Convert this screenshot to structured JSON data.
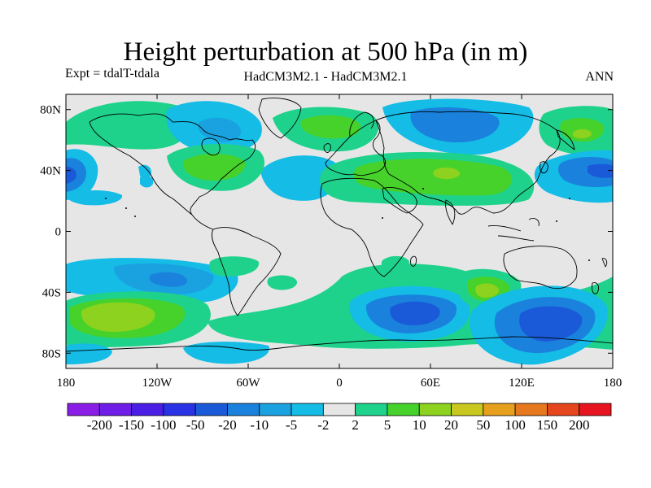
{
  "title": "Height perturbation at 500 hPa (in m)",
  "experiment": "Expt = tdalT-tdala",
  "models": "HadCM3M2.1 - HadCM3M2.1",
  "season": "ANN",
  "axes": {
    "x_ticks": [
      "180",
      "120W",
      "60W",
      "0",
      "60E",
      "120E",
      "180"
    ],
    "x_values": [
      -180,
      -120,
      -60,
      0,
      60,
      120,
      180
    ],
    "y_ticks": [
      "80N",
      "40N",
      "0",
      "40S",
      "80S"
    ],
    "y_values": [
      80,
      40,
      0,
      -40,
      -80
    ],
    "lon_range": [
      -180,
      180
    ],
    "lat_range": [
      -90,
      90
    ]
  },
  "colorbar": {
    "labels": [
      "-200",
      "-150",
      "-100",
      "-50",
      "-20",
      "-10",
      "-5",
      "-2",
      "2",
      "5",
      "10",
      "20",
      "50",
      "100",
      "150",
      "200"
    ],
    "colors": [
      "#8a1ee6",
      "#6e1ee6",
      "#4b1ee6",
      "#2a32e6",
      "#1a5ad8",
      "#1a82dc",
      "#1aa2e0",
      "#14bce6",
      "#e6e6e6",
      "#1ed28c",
      "#46d22a",
      "#8cd21e",
      "#c8c81e",
      "#e6a01e",
      "#e6781e",
      "#e6461e",
      "#e6141e"
    ]
  },
  "map": {
    "background_color": "#e6e6e6",
    "anomalies": [
      {
        "region": "NE Pacific",
        "lon": -162,
        "lat": 70,
        "level": "5"
      },
      {
        "region": "Alaska",
        "lon": -150,
        "lat": 60,
        "level": "5"
      },
      {
        "region": "Canadian Arctic",
        "lon": -82,
        "lat": 72,
        "level": "-5"
      },
      {
        "region": "Hudson Bay",
        "lon": -85,
        "lat": 70,
        "level": "-10"
      },
      {
        "region": "NE North America",
        "lon": -82,
        "lat": 45,
        "level": "10"
      },
      {
        "region": "North Atlantic",
        "lon": -30,
        "lat": 40,
        "level": "-5"
      },
      {
        "region": "Greenland Sea",
        "lon": -15,
        "lat": 68,
        "level": "5"
      },
      {
        "region": "Europe",
        "lon": -8,
        "lat": 70,
        "level": "10"
      },
      {
        "region": "Central Asia",
        "lon": 72,
        "lat": 40,
        "level": "20"
      },
      {
        "region": "Siberia",
        "lon": 85,
        "lat": 75,
        "level": "-10"
      },
      {
        "region": "NE Siberia",
        "lon": 160,
        "lat": 68,
        "level": "10"
      },
      {
        "region": "Japan",
        "lon": 165,
        "lat": 40,
        "level": "-10"
      },
      {
        "region": "Central North Pacific",
        "lon": -172,
        "lat": 40,
        "level": "-10"
      },
      {
        "region": "South Pacific",
        "lon": -120,
        "lat": -35,
        "level": "-10"
      },
      {
        "region": "Southeast Pacific",
        "lon": -148,
        "lat": -57,
        "level": "20"
      },
      {
        "region": "South Atlantic",
        "lon": -45,
        "lat": -35,
        "level": "5"
      },
      {
        "region": "Southern Indian",
        "lon": 55,
        "lat": -52,
        "level": "-20"
      },
      {
        "region": "Indian Ocean",
        "lon": 98,
        "lat": -40,
        "level": "20"
      },
      {
        "region": "South of Australia",
        "lon": 142,
        "lat": -58,
        "level": "-20"
      },
      {
        "region": "Antarctic",
        "lon": -60,
        "lat": -80,
        "level": "-5"
      }
    ]
  }
}
